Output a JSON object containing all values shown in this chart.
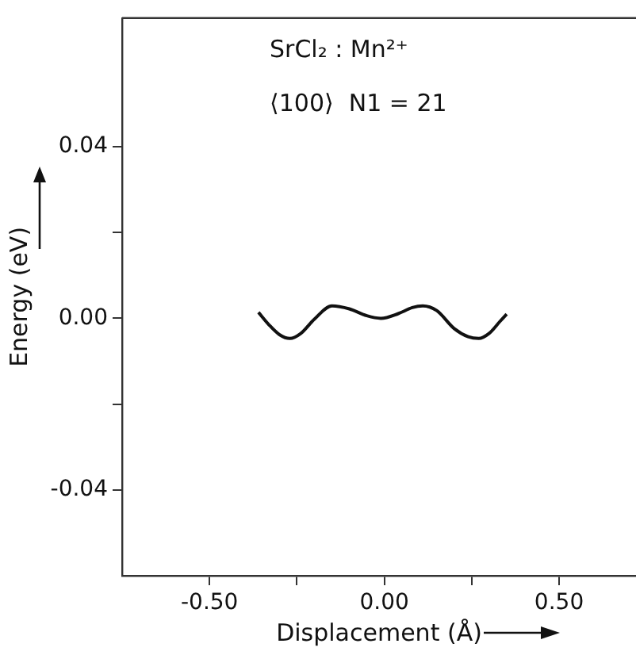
{
  "chart_data": {
    "type": "line",
    "xlabel": "Displacement (Å)",
    "ylabel": "Energy (eV)",
    "annotations": [
      "SrCl₂ : Mn²⁺",
      "⟨100⟩  N1 = 21"
    ],
    "series": [
      {
        "color": "#111111",
        "x": [
          -0.36,
          -0.33,
          -0.3,
          -0.27,
          -0.24,
          -0.2,
          -0.15,
          -0.1,
          -0.05,
          -0.01,
          0.04,
          0.08,
          0.11,
          0.15,
          0.2,
          0.24,
          0.27,
          0.3,
          0.33,
          0.35
        ],
        "values": [
          0.0014,
          -0.0015,
          -0.0038,
          -0.0047,
          -0.0036,
          -0.0002,
          0.0029,
          0.0022,
          0.0006,
          0.0,
          0.0011,
          0.0025,
          0.0029,
          0.0018,
          -0.0024,
          -0.0043,
          -0.0047,
          -0.0035,
          -0.0008,
          0.001
        ]
      }
    ],
    "xlim": [
      -0.75,
      0.72
    ],
    "xticks": [
      {
        "value": -0.5,
        "label": "-0.50"
      },
      {
        "value": -0.25,
        "label": null
      },
      {
        "value": 0,
        "label": "0.00"
      },
      {
        "value": 0.25,
        "label": null
      },
      {
        "value": 0.5,
        "label": "0.50"
      }
    ],
    "ylim": [
      -0.06,
      0.07
    ],
    "yticks": [
      {
        "value": -0.04,
        "label": "-0.04"
      },
      {
        "value": -0.02,
        "label": null
      },
      {
        "value": 0,
        "label": "0.00"
      },
      {
        "value": 0.02,
        "label": null
      },
      {
        "value": 0.04,
        "label": "0.04"
      }
    ],
    "grid": false,
    "legend": false,
    "marker": "none",
    "line_style": "solid"
  }
}
